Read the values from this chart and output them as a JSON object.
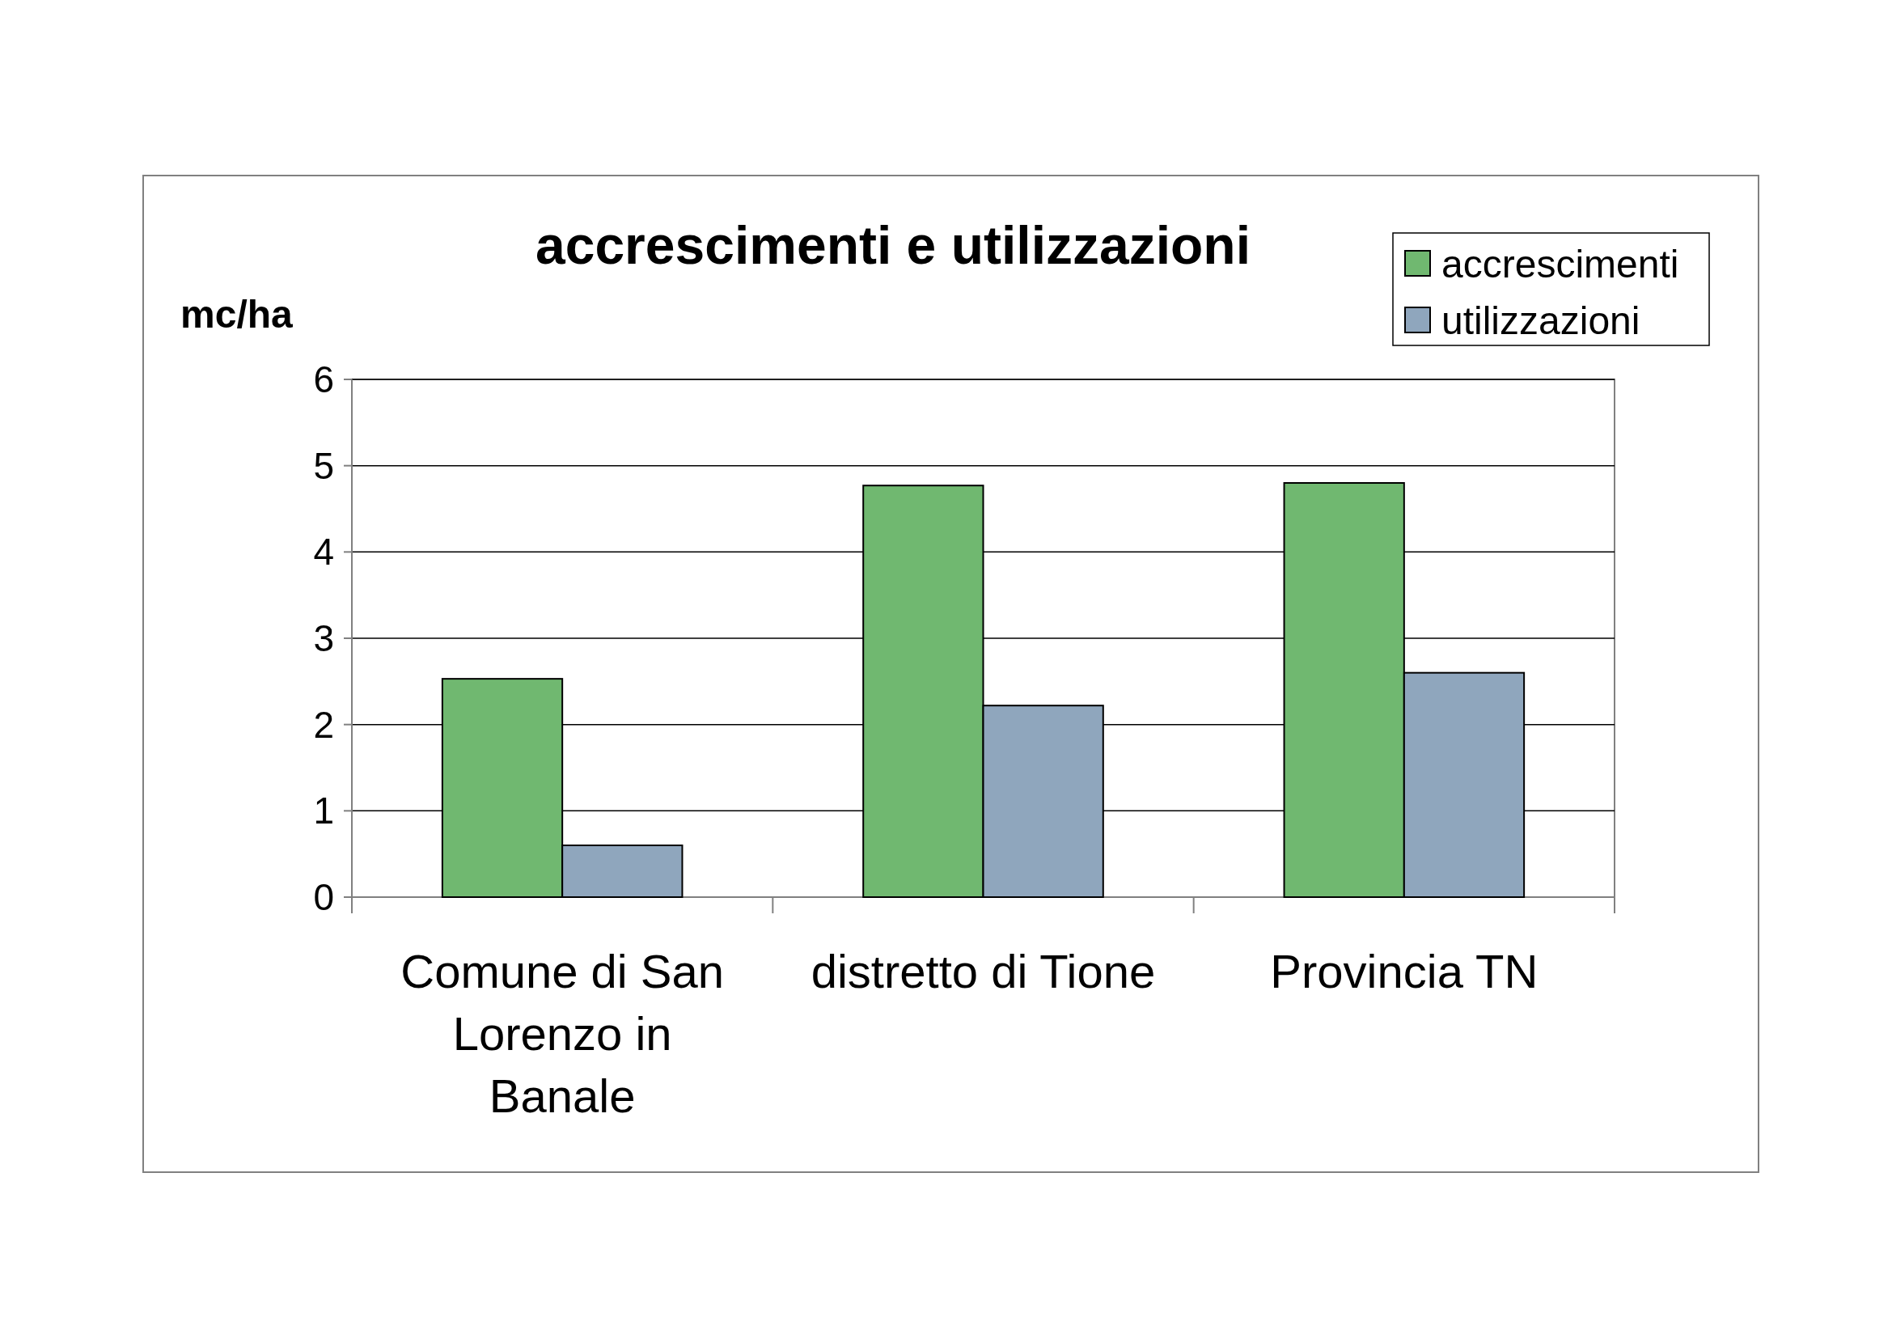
{
  "chart_data": {
    "type": "bar",
    "title": "accrescimenti e utilizzazioni",
    "ylabel": "mc/ha",
    "categories": [
      "Comune di San Lorenzo in Banale",
      "distretto di Tione",
      "Provincia TN"
    ],
    "series": [
      {
        "name": "accrescimenti",
        "color": "#70b870",
        "values": [
          2.53,
          4.77,
          4.8
        ]
      },
      {
        "name": "utilizzazioni",
        "color": "#8fa6bd",
        "values": [
          0.6,
          2.22,
          2.6
        ]
      }
    ],
    "ylim": [
      0,
      6
    ],
    "yticks": [
      0,
      1,
      2,
      3,
      4,
      5,
      6
    ],
    "grid": "y",
    "legend": "top right"
  }
}
